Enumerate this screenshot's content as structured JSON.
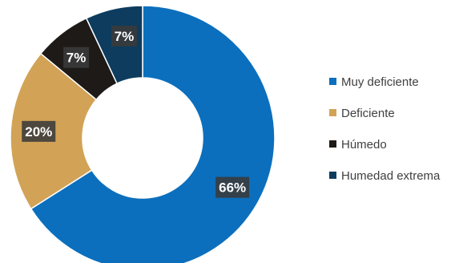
{
  "chart_data": {
    "type": "pie",
    "variant": "donut",
    "title": "",
    "categories": [
      "Muy deficiente",
      "Deficiente",
      "Húmedo",
      "Humedad extrema"
    ],
    "values": [
      66,
      20,
      7,
      7
    ],
    "labels": [
      "66%",
      "20%",
      "7%",
      "7%"
    ],
    "colors": [
      "#0b6fbd",
      "#d2a356",
      "#1e1a18",
      "#0d3c5e"
    ],
    "legend_position": "right"
  }
}
